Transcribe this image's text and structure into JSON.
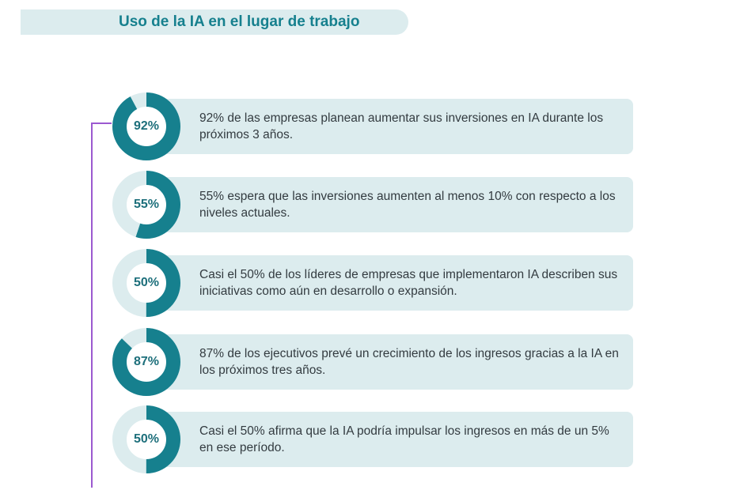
{
  "title": "Uso de la IA en el lugar de trabajo",
  "colors": {
    "accent": "#16808e",
    "ring_track": "#dcecee",
    "card_bg": "#dcecee",
    "timeline": "#9b59d0"
  },
  "items": [
    {
      "percent": 92,
      "label": "92%",
      "text": "92% de las empresas planean aumentar sus inversiones en IA durante los próximos 3 años."
    },
    {
      "percent": 55,
      "label": "55%",
      "text": "55% espera que las inversiones aumenten al menos 10% con respecto a los niveles actuales."
    },
    {
      "percent": 50,
      "label": "50%",
      "text": "Casi el 50% de los líderes de empresas que implementaron IA describen sus iniciativas como aún en desarrollo o expansión."
    },
    {
      "percent": 87,
      "label": "87%",
      "text": "87% de los ejecutivos prevé un crecimiento de los ingresos gracias a la IA en los próximos tres años."
    },
    {
      "percent": 50,
      "label": "50%",
      "text": "Casi el 50% afirma que la IA podría impulsar los ingresos en más de un 5% en ese período."
    }
  ]
}
